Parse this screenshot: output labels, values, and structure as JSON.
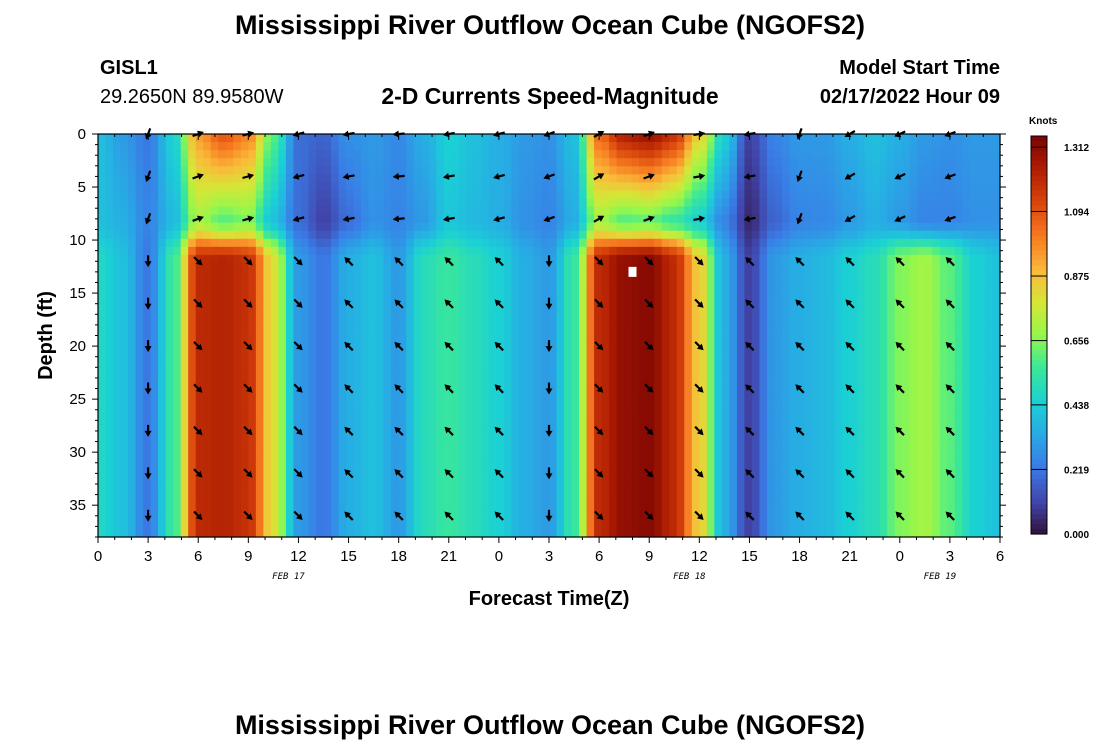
{
  "page": {
    "title": "Mississippi River Outflow Ocean Cube (NGOFS2)",
    "title_repeat": "Mississippi River Outflow Ocean Cube (NGOFS2)",
    "station_id": "GISL1",
    "station_coords": "29.2650N  89.9580W",
    "subtitle": "2-D Currents Speed-Magnitude",
    "start_label": "Model Start Time",
    "start_value": "02/17/2022 Hour 09"
  },
  "colors": {
    "background": "#ffffff",
    "arrow": "#000000",
    "marker": "#ffffff"
  },
  "chart_data": {
    "type": "heatmap",
    "title": "2-D Currents Speed-Magnitude",
    "xlabel": "Forecast Time(Z)",
    "ylabel": "Depth (ft)",
    "x_ticks": [
      "0",
      "3",
      "6",
      "9",
      "12",
      "15",
      "18",
      "21",
      "0",
      "3",
      "6",
      "9",
      "12",
      "15",
      "18",
      "21",
      "0",
      "3",
      "6"
    ],
    "x_range_hours": [
      0,
      54
    ],
    "day_labels": [
      {
        "label": "FEB 17",
        "hour": 12
      },
      {
        "label": "FEB 18",
        "hour": 36
      },
      {
        "label": "FEB 19",
        "hour": 51
      }
    ],
    "y_ticks": [
      "0",
      "5",
      "10",
      "15",
      "20",
      "25",
      "30",
      "35"
    ],
    "y_range_ft": [
      0,
      38
    ],
    "colorbar": {
      "label": "Knots",
      "ticks": [
        "0.000",
        "0.219",
        "0.438",
        "0.656",
        "0.875",
        "1.094",
        "1.312"
      ],
      "range": [
        0,
        1.35
      ]
    },
    "time_profile_hours": [
      0,
      1.5,
      3,
      4.5,
      6,
      7.5,
      9,
      10.5,
      12,
      13.5,
      15,
      16.5,
      18,
      19.5,
      21,
      22.5,
      24,
      25.5,
      27,
      28.5,
      30,
      31.5,
      33,
      34.5,
      36,
      37.5,
      39,
      40.5,
      42,
      43.5,
      45,
      46.5,
      48,
      49.5,
      51,
      52.5,
      54
    ],
    "speed_surface_knots": [
      0.4,
      0.3,
      0.22,
      0.45,
      0.95,
      1.1,
      1.0,
      0.6,
      0.2,
      0.18,
      0.28,
      0.3,
      0.26,
      0.35,
      0.45,
      0.4,
      0.35,
      0.3,
      0.28,
      0.4,
      1.05,
      1.25,
      1.3,
      1.2,
      0.85,
      0.45,
      0.1,
      0.25,
      0.3,
      0.3,
      0.35,
      0.4,
      0.35,
      0.3,
      0.28,
      0.3,
      0.3
    ],
    "speed_mid_knots": [
      0.4,
      0.35,
      0.25,
      0.38,
      0.7,
      0.6,
      0.65,
      0.4,
      0.2,
      0.1,
      0.2,
      0.28,
      0.25,
      0.3,
      0.42,
      0.38,
      0.35,
      0.28,
      0.25,
      0.35,
      0.7,
      0.6,
      0.62,
      0.55,
      0.45,
      0.25,
      0.05,
      0.18,
      0.25,
      0.26,
      0.3,
      0.35,
      0.3,
      0.25,
      0.25,
      0.28,
      0.28
    ],
    "speed_deep_knots": [
      0.48,
      0.4,
      0.22,
      0.55,
      1.2,
      1.22,
      1.18,
      0.8,
      0.3,
      0.22,
      0.35,
      0.4,
      0.3,
      0.5,
      0.55,
      0.5,
      0.45,
      0.35,
      0.3,
      0.55,
      1.2,
      1.3,
      1.32,
      1.2,
      0.85,
      0.35,
      0.1,
      0.3,
      0.35,
      0.38,
      0.45,
      0.5,
      0.65,
      0.7,
      0.6,
      0.45,
      0.4
    ],
    "arrow_hours": [
      3,
      6,
      9,
      12,
      15,
      18,
      21,
      24,
      27,
      30,
      33,
      36,
      39,
      42,
      45,
      48,
      51
    ],
    "arrow_depths_ft": [
      0,
      4,
      8,
      12,
      16,
      20,
      24,
      28,
      32,
      36
    ],
    "arrow_direction_deg_upper": [
      250,
      20,
      15,
      195,
      190,
      185,
      190,
      195,
      200,
      30,
      20,
      10,
      190,
      250,
      210,
      205,
      200
    ],
    "arrow_direction_deg_lower": [
      270,
      315,
      315,
      315,
      135,
      135,
      135,
      135,
      270,
      315,
      315,
      315,
      135,
      135,
      135,
      135,
      135
    ],
    "marker_point": {
      "hour": 32,
      "depth_ft": 13
    }
  }
}
